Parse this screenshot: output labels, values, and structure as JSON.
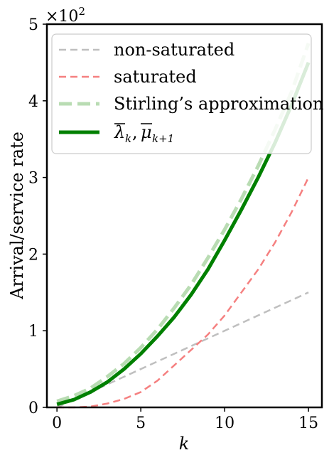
{
  "chart_data": {
    "type": "line",
    "xlabel": "k",
    "ylabel": "Arrival/service rate",
    "y_multiplier": "×10^2",
    "y_multiplier_base": "×10",
    "y_multiplier_exp": "2",
    "xlim": [
      -0.6,
      15.8
    ],
    "ylim": [
      0,
      5
    ],
    "xticks": [
      0,
      5,
      10,
      15
    ],
    "xtick_labels": [
      "0",
      "5",
      "10",
      "15"
    ],
    "yticks": [
      0,
      1,
      2,
      3,
      4,
      5
    ],
    "ytick_labels": [
      "0",
      "1",
      "2",
      "3",
      "4",
      "5"
    ],
    "grid": false,
    "legend_position": "upper-left",
    "series": [
      {
        "name": "non-saturated",
        "style": "dashed",
        "color": "#bfbfbf",
        "width": 2.5,
        "x": [
          0,
          15
        ],
        "y": [
          0.0,
          1.5
        ]
      },
      {
        "name": "saturated",
        "style": "dashed",
        "color": "#f58080",
        "width": 2.5,
        "x": [
          0,
          1,
          2,
          3,
          4,
          5,
          6,
          7,
          8,
          9,
          10,
          11,
          12,
          13,
          14,
          15
        ],
        "y": [
          0.0,
          0.0,
          0.01,
          0.05,
          0.11,
          0.2,
          0.35,
          0.55,
          0.75,
          0.95,
          1.2,
          1.5,
          1.8,
          2.15,
          2.55,
          3.0
        ]
      },
      {
        "name": "Stirling's approximation",
        "style": "dashed-thick",
        "color": "#b9dcb3",
        "width": 5,
        "x": [
          0,
          1,
          2,
          3,
          4,
          5,
          6,
          7,
          8,
          9,
          10,
          11,
          12,
          13,
          14,
          15
        ],
        "y": [
          0.08,
          0.15,
          0.25,
          0.4,
          0.57,
          0.78,
          1.02,
          1.3,
          1.6,
          1.95,
          2.32,
          2.72,
          3.15,
          3.62,
          4.12,
          4.75
        ]
      },
      {
        "name": "λ̄_k, μ̄_{k+1}",
        "style": "solid",
        "color": "#008000",
        "width": 5,
        "x": [
          0,
          1,
          2,
          3,
          4,
          5,
          6,
          7,
          8,
          9,
          10,
          11,
          12,
          13,
          14,
          15
        ],
        "y": [
          0.04,
          0.1,
          0.2,
          0.33,
          0.5,
          0.7,
          0.93,
          1.18,
          1.47,
          1.8,
          2.18,
          2.58,
          3.0,
          3.45,
          3.95,
          4.5
        ]
      }
    ],
    "legend_entries": [
      "non-saturated",
      "saturated",
      "Stirling’s approximation"
    ]
  }
}
